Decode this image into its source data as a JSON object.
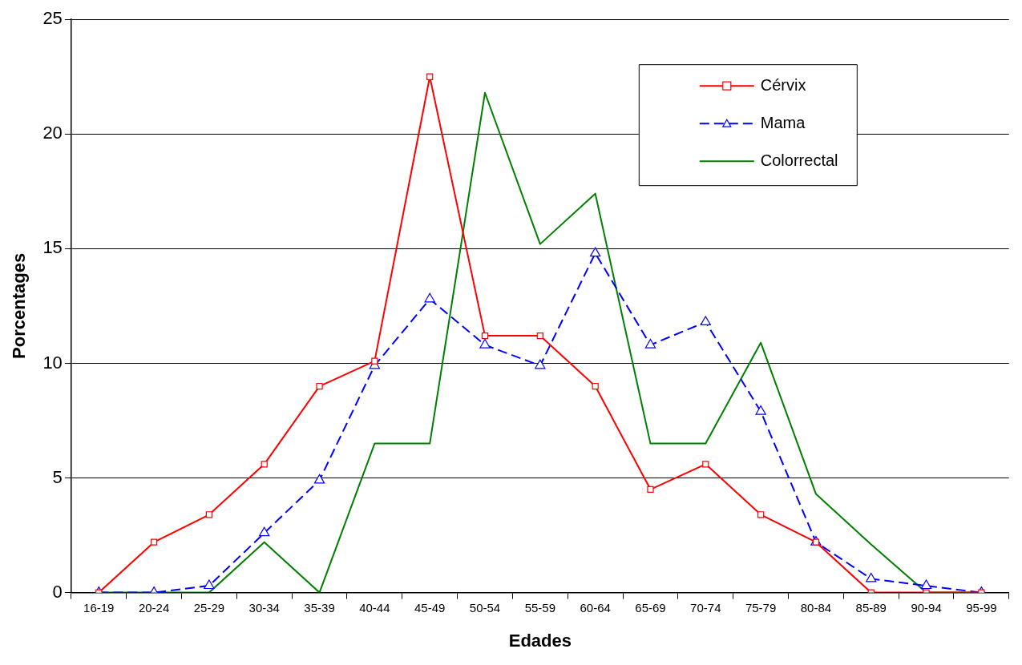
{
  "chart_data": {
    "type": "line",
    "xlabel": "Edades",
    "ylabel": "Porcentages",
    "categories": [
      "16-19",
      "20-24",
      "25-29",
      "30-34",
      "35-39",
      "40-44",
      "45-49",
      "50-54",
      "55-59",
      "60-64",
      "65-69",
      "70-74",
      "75-79",
      "80-84",
      "85-89",
      "90-94",
      "95-99"
    ],
    "ylim": [
      0,
      25
    ],
    "yticks": [
      0,
      5,
      10,
      15,
      20,
      25
    ],
    "grid": "y",
    "legend": "top right",
    "series": [
      {
        "name": "Cérvix",
        "color": "#ff0000",
        "marker": "square",
        "line_style": "solid",
        "values": [
          0,
          2.2,
          3.4,
          5.6,
          9,
          10.1,
          22.5,
          11.2,
          11.2,
          9,
          4.5,
          5.6,
          3.4,
          2.2,
          0,
          0,
          0
        ]
      },
      {
        "name": "Mama",
        "color": "#0000ff",
        "marker": "triangle",
        "line_style": "dashed",
        "values": [
          0,
          0,
          0.3,
          2.6,
          4.9,
          9.9,
          12.8,
          10.8,
          9.9,
          14.8,
          10.8,
          11.8,
          7.9,
          2.2,
          0.6,
          0.3,
          0
        ]
      },
      {
        "name": "Colorrectal",
        "color": "#008000",
        "marker": "none",
        "line_style": "solid",
        "values": [
          0,
          0,
          0,
          2.2,
          0,
          6.5,
          6.5,
          21.8,
          15.2,
          17.4,
          6.5,
          6.5,
          10.9,
          4.3,
          2.1,
          0,
          0
        ]
      }
    ]
  }
}
